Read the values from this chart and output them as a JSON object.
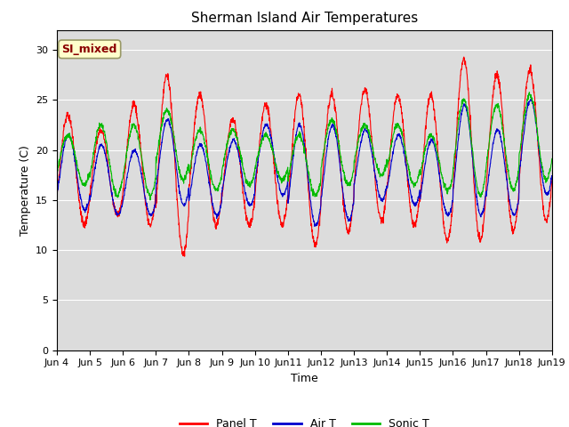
{
  "title": "Sherman Island Air Temperatures",
  "xlabel": "Time",
  "ylabel": "Temperature (C)",
  "ylim": [
    0,
    32
  ],
  "yticks": [
    0,
    5,
    10,
    15,
    20,
    25,
    30
  ],
  "background_color": "#dcdcdc",
  "annotation_text": "SI_mixed",
  "annotation_color": "#8b0000",
  "annotation_bg": "#ffffcc",
  "line_colors": {
    "panel": "#ff0000",
    "air": "#0000cd",
    "sonic": "#00bb00"
  },
  "legend_labels": [
    "Panel T",
    "Air T",
    "Sonic T"
  ],
  "n_days": 15,
  "points_per_day": 144,
  "start_day": 4,
  "panel_peaks": [
    23.5,
    22.0,
    24.5,
    27.5,
    25.5,
    23.0,
    24.5,
    25.5,
    25.5,
    26.0,
    25.5,
    25.5,
    29.0,
    27.5,
    28.0
  ],
  "panel_troughs": [
    12.5,
    13.5,
    12.5,
    9.5,
    12.5,
    12.5,
    12.5,
    10.5,
    12.0,
    13.0,
    12.5,
    11.0,
    11.0,
    12.0,
    13.0
  ],
  "air_peaks": [
    21.5,
    20.5,
    20.0,
    23.0,
    20.5,
    21.0,
    22.5,
    22.5,
    22.5,
    22.0,
    21.5,
    21.0,
    24.5,
    22.0,
    25.0
  ],
  "air_troughs": [
    14.0,
    13.5,
    13.5,
    14.5,
    13.5,
    14.5,
    15.5,
    12.5,
    13.0,
    15.0,
    14.5,
    13.5,
    13.5,
    13.5,
    15.5
  ],
  "sonic_peaks": [
    21.5,
    22.5,
    22.5,
    24.0,
    22.0,
    22.0,
    21.5,
    21.5,
    23.0,
    22.5,
    22.5,
    21.5,
    25.0,
    24.5,
    25.5
  ],
  "sonic_troughs": [
    16.5,
    15.5,
    15.5,
    17.0,
    16.0,
    16.5,
    17.0,
    15.5,
    16.5,
    17.5,
    16.5,
    16.0,
    15.5,
    16.0,
    17.0
  ],
  "peak_phase": 0.58,
  "trough_phase": 0.17,
  "figure_width": 6.4,
  "figure_height": 4.8,
  "dpi": 100
}
